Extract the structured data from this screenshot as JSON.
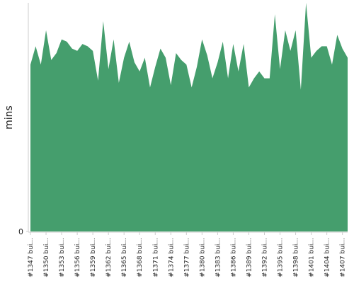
{
  "chart_data": {
    "type": "area",
    "y_label": "mins",
    "color": "#459e6d",
    "categories": [
      "#1347 bui...",
      null,
      null,
      "#1350 bui...",
      null,
      null,
      "#1353 bui...",
      null,
      null,
      "#1356 bui...",
      null,
      null,
      "#1359 bui...",
      null,
      null,
      "#1362 bui...",
      null,
      null,
      "#1365 bui...",
      null,
      null,
      "#1368 bui...",
      null,
      null,
      "#1371 bui...",
      null,
      null,
      "#1374 bui...",
      null,
      null,
      "#1377 bui...",
      null,
      null,
      "#1380 bui...",
      null,
      null,
      "#1383 bui...",
      null,
      null,
      "#1386 bui...",
      null,
      null,
      "#1389 bui...",
      null,
      null,
      "#1392 bui...",
      null,
      null,
      "#1395 bui...",
      null,
      null,
      "#1398 bui...",
      null,
      null,
      "#1401 bui...",
      null,
      null,
      "#1404 bui...",
      null,
      null,
      "#1407 bui...",
      null
    ],
    "values": [
      73,
      81,
      73,
      88,
      75,
      78,
      84,
      83,
      80,
      79,
      82,
      81,
      79,
      66,
      92,
      71,
      84,
      65,
      76,
      83,
      74,
      70,
      76,
      63,
      72,
      80,
      76,
      64,
      78,
      75,
      73,
      63,
      72,
      84,
      77,
      67,
      74,
      83,
      67,
      82,
      70,
      82,
      63,
      67,
      70,
      67,
      67,
      95,
      71,
      88,
      79,
      88,
      62,
      100,
      76,
      79,
      81,
      81,
      73,
      86,
      80,
      76
    ],
    "ylim": [
      0,
      100
    ],
    "yticks": [
      0
    ]
  }
}
